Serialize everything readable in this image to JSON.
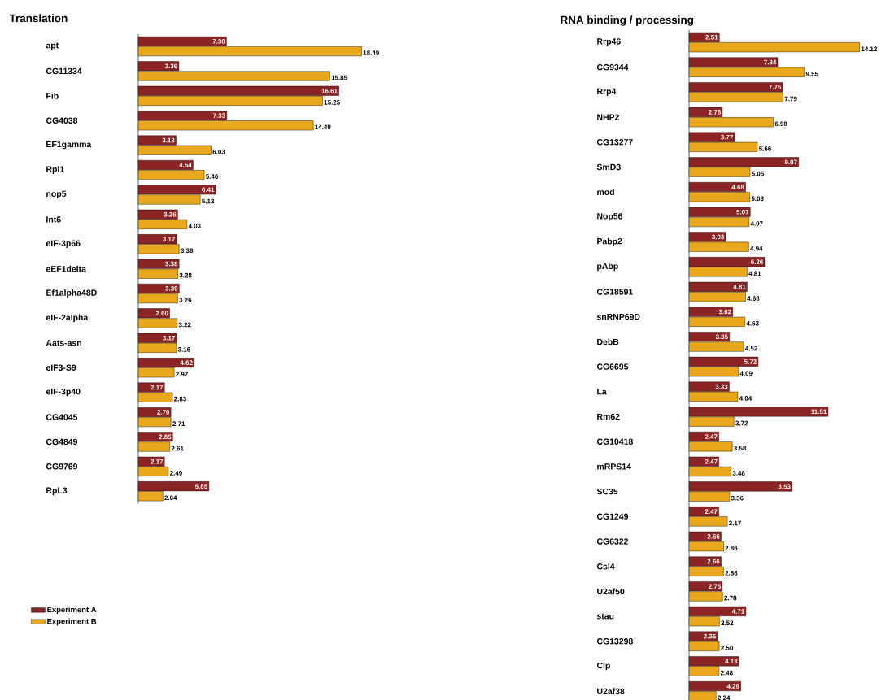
{
  "chart_data": [
    {
      "type": "bar",
      "orientation": "horizontal",
      "title": "Translation",
      "legend": "bottom left",
      "categories": [
        "apt",
        "CG11334",
        "Fib",
        "CG4038",
        "EF1gamma",
        "Rpl1",
        "nop5",
        "Int6",
        "eIF-3p66",
        "eEF1delta",
        "Ef1alpha48D",
        "eIF-2alpha",
        "Aats-asn",
        "eIF3-S9",
        "eIF-3p40",
        "CG4045",
        "CG4849",
        "CG9769",
        "RpL3"
      ],
      "series": [
        {
          "name": "Experiment A",
          "color": "#8b2525",
          "values": [
            7.3,
            3.36,
            16.61,
            7.33,
            3.13,
            4.54,
            6.41,
            3.26,
            3.17,
            3.38,
            3.39,
            2.6,
            3.17,
            4.62,
            2.17,
            2.7,
            2.85,
            2.17,
            5.85
          ],
          "value_labels": [
            "7.30",
            "3.36",
            "16.61",
            "7.33",
            "3.13",
            "4.54",
            "6.41",
            "3.26",
            "3.17",
            "3.38",
            "3.39",
            "2.60",
            "3.17",
            "4.62",
            "2.17",
            "2.70",
            "2.85",
            "2.17",
            "5.85"
          ]
        },
        {
          "name": "Experiment B",
          "color": "#e8a71c",
          "values": [
            18.49,
            15.85,
            15.25,
            14.49,
            6.03,
            5.46,
            5.13,
            4.03,
            3.38,
            3.28,
            3.26,
            3.22,
            3.16,
            2.97,
            2.83,
            2.71,
            2.61,
            2.49,
            2.04
          ],
          "value_labels": [
            "18.49",
            "15.85",
            "15.25",
            "14.49",
            "6.03",
            "5.46",
            "5.13",
            "4.03",
            "3.38",
            "3.28",
            "3.26",
            "3.22",
            "3.16",
            "2.97",
            "2.83",
            "2.71",
            "2.61",
            "2.49",
            "2.04"
          ]
        }
      ]
    },
    {
      "type": "bar",
      "orientation": "horizontal",
      "title": "RNA binding / processing",
      "categories": [
        "Rrp46",
        "CG9344",
        "Rrp4",
        "NHP2",
        "CG13277",
        "SmD3",
        "mod",
        "Nop56",
        "Pabp2",
        "pAbp",
        "CG18591",
        "snRNP69D",
        "DebB",
        "CG6695",
        "La",
        "Rm62",
        "CG10418",
        "mRPS14",
        "SC35",
        "CG1249",
        "CG6322",
        "Csl4",
        "U2af50",
        "stau",
        "CG13298",
        "Clp",
        "U2af38"
      ],
      "series": [
        {
          "color": "#8b2525",
          "values": [
            2.51,
            7.34,
            7.75,
            2.76,
            3.77,
            9.07,
            4.68,
            5.07,
            3.03,
            6.26,
            4.81,
            3.62,
            3.35,
            5.72,
            3.33,
            11.51,
            2.47,
            2.47,
            8.53,
            2.47,
            2.66,
            2.66,
            2.75,
            4.71,
            2.35,
            4.13,
            4.29
          ],
          "value_labels": [
            "2.51",
            "7.34",
            "7.75",
            "2.76",
            "3.77",
            "9.07",
            "4.68",
            "5.07",
            "3.03",
            "6.26",
            "4.81",
            "3.62",
            "3.35",
            "5.72",
            "3.33",
            "11.51",
            "2.47",
            "2.47",
            "8.53",
            "2.47",
            "2.66",
            "2.66",
            "2.75",
            "4.71",
            "2.35",
            "4.13",
            "4.29"
          ]
        },
        {
          "color": "#e8a71c",
          "values": [
            14.12,
            9.55,
            7.79,
            6.98,
            5.66,
            5.05,
            5.03,
            4.97,
            4.94,
            4.81,
            4.68,
            4.63,
            4.52,
            4.09,
            4.04,
            3.72,
            3.58,
            3.48,
            3.36,
            3.17,
            2.86,
            2.86,
            2.78,
            2.52,
            2.5,
            2.48,
            2.24
          ],
          "value_labels": [
            "14.12",
            "9.55",
            "7.79",
            "6.98",
            "5.66",
            "5.05",
            "5.03",
            "4.97",
            "4.94",
            "4.81",
            "4.68",
            "4.63",
            "4.52",
            "4.09",
            "4.04",
            "3.72",
            "3.58",
            "3.48",
            "3.36",
            "3.17",
            "2.86",
            "2.86",
            "2.78",
            "2.52",
            "2.50",
            "2.48",
            "2.24"
          ]
        }
      ]
    }
  ]
}
